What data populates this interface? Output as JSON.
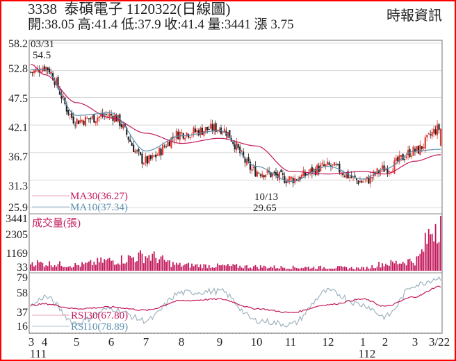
{
  "header": {
    "title": "3338  泰碩電子 1120322(日線圖)",
    "ohlc": "開:38.05 高:41.4 低:37.9 收:41.4 量:3441 漲 3.75",
    "brand": "時報資訊"
  },
  "colors": {
    "border": "#ff0000",
    "up_candle": "#e53935",
    "down_candle": "#222222",
    "ma30": "#c2185b",
    "ma10": "#5b8fb0",
    "volume": "#c2185b",
    "rsi30": "#c2185b",
    "rsi10": "#9fb3c0",
    "grid": "#d8d8d8",
    "axis": "#888888"
  },
  "chart_data": [
    {
      "type": "candlestick",
      "title": "3338 泰碩電子 1120322(日線圖)",
      "panel": "price",
      "yticks": [
        "58.2",
        "52.8",
        "47.5",
        "42.1",
        "36.7",
        "31.3",
        "25.9"
      ],
      "ylim": [
        25.9,
        58.2
      ],
      "annotations": [
        {
          "label": "03/31",
          "value": "54.5",
          "note": "high"
        },
        {
          "label": "10/13",
          "value": "29.65",
          "note": "low"
        }
      ],
      "legend": [
        {
          "name": "MA30",
          "label": "MA30(36.27)",
          "value": 36.27
        },
        {
          "name": "MA10",
          "label": "MA10(37.34)",
          "value": 37.34
        }
      ],
      "series": [
        {
          "name": "close_approx",
          "x": [
            "3",
            "4",
            "5",
            "6",
            "7",
            "8",
            "9",
            "10",
            "11",
            "12",
            "1",
            "2",
            "3",
            "3/22"
          ],
          "values": [
            52.5,
            53.5,
            43.0,
            44.0,
            35.0,
            40.5,
            41.5,
            33.0,
            31.5,
            34.0,
            31.0,
            33.5,
            37.0,
            41.4
          ]
        },
        {
          "name": "MA30",
          "values": [
            54.0,
            52.0,
            46.5,
            43.5,
            40.5,
            38.5,
            39.5,
            38.0,
            33.0,
            32.5,
            33.0,
            32.5,
            35.0,
            36.27
          ]
        },
        {
          "name": "MA10",
          "values": [
            53.0,
            53.0,
            44.0,
            44.5,
            37.0,
            40.0,
            41.0,
            34.0,
            31.0,
            34.0,
            31.5,
            33.5,
            37.0,
            37.34
          ]
        }
      ],
      "latest": {
        "open": 38.05,
        "high": 41.4,
        "low": 37.9,
        "close": 41.4,
        "volume": 3441,
        "change": 3.75
      }
    },
    {
      "type": "bar",
      "panel": "volume",
      "title": "成交量(張)",
      "yticks": [
        "3441",
        "2305",
        "1169",
        "33"
      ],
      "ylim": [
        33,
        3441
      ],
      "x": [
        "3",
        "4",
        "5",
        "6",
        "7",
        "8",
        "9",
        "10",
        "11",
        "12",
        "1",
        "2",
        "3",
        "3/22"
      ],
      "values": [
        600,
        500,
        400,
        700,
        1000,
        400,
        350,
        300,
        250,
        250,
        200,
        500,
        700,
        3441
      ]
    },
    {
      "type": "line",
      "panel": "rsi",
      "yticks": [
        "79",
        "58",
        "37",
        "16"
      ],
      "ylim": [
        16,
        79
      ],
      "legend": [
        {
          "name": "RSI30",
          "label": "RSI30(67.80)",
          "value": 67.8
        },
        {
          "name": "RSI10",
          "label": "RSI10(78.89)",
          "value": 78.89
        }
      ],
      "x": [
        "3",
        "4",
        "5",
        "6",
        "7",
        "8",
        "9",
        "10",
        "11",
        "12",
        "1",
        "2",
        "3",
        "3/22"
      ],
      "series": [
        {
          "name": "RSI30",
          "values": [
            44,
            46,
            40,
            42,
            38,
            50,
            52,
            40,
            35,
            45,
            52,
            43,
            55,
            67.8
          ]
        },
        {
          "name": "RSI10",
          "values": [
            44,
            55,
            22,
            40,
            25,
            60,
            62,
            25,
            20,
            62,
            45,
            30,
            70,
            78.89
          ]
        }
      ]
    }
  ],
  "xaxis": {
    "labels": [
      "3",
      "4",
      "5",
      "6",
      "7",
      "8",
      "9",
      "10",
      "11",
      "12",
      "1",
      "2",
      "3",
      "3/22"
    ],
    "year_labels": [
      {
        "label": "111",
        "under": "3"
      },
      {
        "label": "112",
        "under": "1"
      }
    ]
  },
  "price_panel": {
    "yticks": [
      "58.2",
      "52.8",
      "47.5",
      "42.1",
      "36.7",
      "31.3",
      "25.9"
    ],
    "high_date": "03/31",
    "high_value": "54.5",
    "low_date": "10/13",
    "low_value": "29.65",
    "ma30_label": "MA30(36.27)",
    "ma10_label": "MA10(37.34)"
  },
  "volume_panel": {
    "title": "成交量(張)",
    "yticks": [
      "3441",
      "2305",
      "1169",
      "33"
    ]
  },
  "rsi_panel": {
    "yticks": [
      "79",
      "58",
      "37",
      "16"
    ],
    "rsi30_label": "RSI30(67.80)",
    "rsi10_label": "RSI10(78.89)"
  }
}
